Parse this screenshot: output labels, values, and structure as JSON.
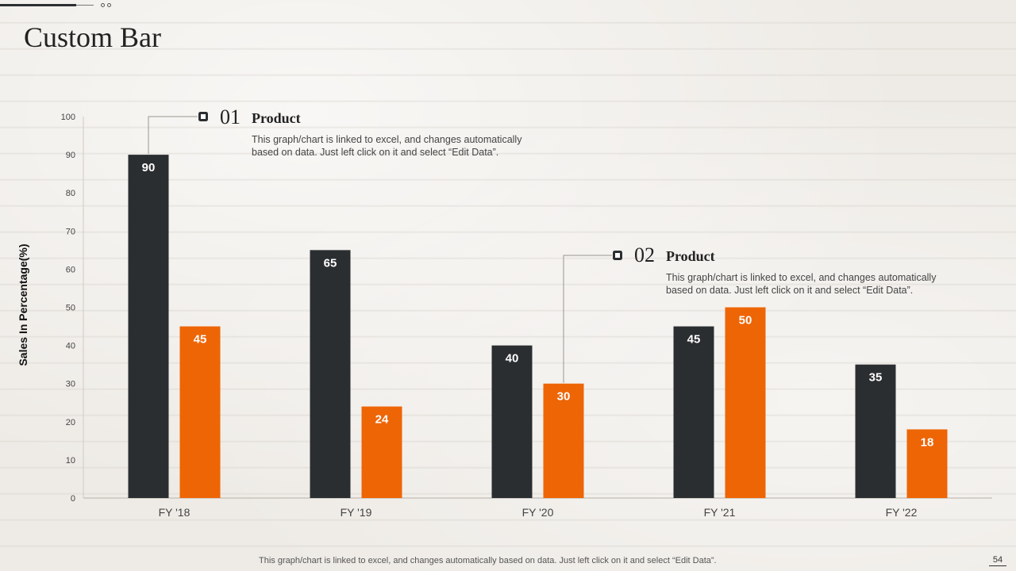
{
  "slide": {
    "title": "Custom Bar",
    "footer_note": "This graph/chart is linked to excel, and changes automatically based on data. Just left click on it and select “Edit Data”.",
    "page_number": "54"
  },
  "callouts": [
    {
      "number": "01",
      "heading": "Product",
      "text": "This graph/chart is linked to excel, and changes automatically based on data. Just left click on it and select “Edit Data”."
    },
    {
      "number": "02",
      "heading": "Product",
      "text": "This graph/chart is linked to excel, and changes automatically based on data. Just left click on it and select “Edit Data”."
    }
  ],
  "chart_data": {
    "type": "bar",
    "title": "",
    "xlabel": "",
    "ylabel": "Sales In Percentage(%)",
    "ylim": [
      0,
      100
    ],
    "yticks": [
      0,
      10,
      20,
      30,
      40,
      50,
      60,
      70,
      80,
      90,
      100
    ],
    "categories": [
      "FY '18",
      "FY '19",
      "FY '20",
      "FY '21",
      "FY '22"
    ],
    "series": [
      {
        "values": [
          90,
          65,
          40,
          45,
          35
        ],
        "color": "#2b2e31"
      },
      {
        "values": [
          45,
          24,
          30,
          50,
          18
        ],
        "color": "#ee6506"
      }
    ],
    "data_labels": true,
    "grid": false,
    "legend": "none"
  }
}
